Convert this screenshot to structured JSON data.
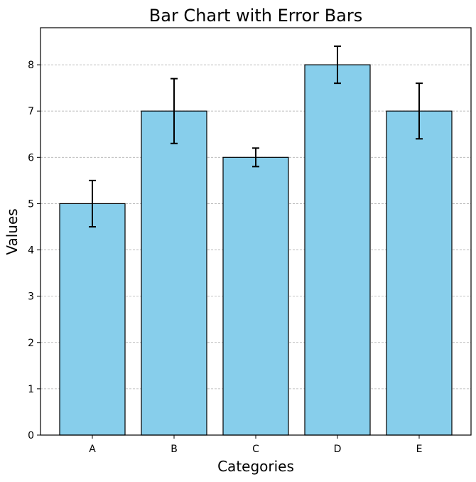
{
  "chart_data": {
    "type": "bar",
    "title": "Bar Chart with Error Bars",
    "xlabel": "Categories",
    "ylabel": "Values",
    "categories": [
      "A",
      "B",
      "C",
      "D",
      "E"
    ],
    "values": [
      5,
      7,
      6,
      8,
      7
    ],
    "errors": [
      0.5,
      0.7,
      0.2,
      0.4,
      0.6
    ],
    "ylim": [
      0,
      8.8
    ],
    "yticks": [
      "0",
      "1",
      "2",
      "3",
      "4",
      "5",
      "6",
      "7",
      "8"
    ],
    "grid": "y-dashed",
    "colors": {
      "bar_fill": "#87ceeb",
      "bar_edge": "#000000",
      "error_bar": "#000000",
      "grid": "#b0b0b0"
    }
  }
}
